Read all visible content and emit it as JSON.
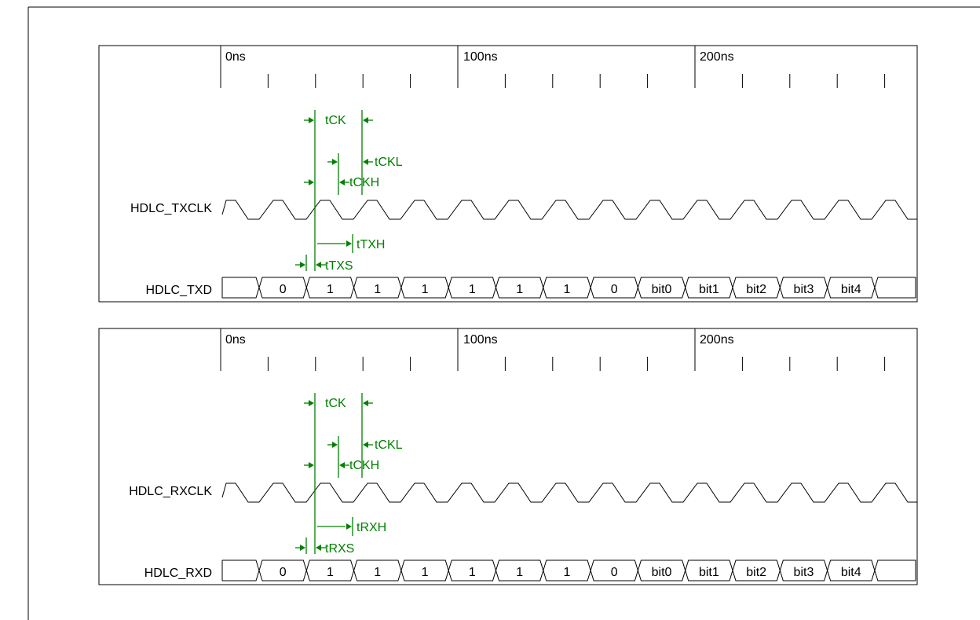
{
  "panels": [
    {
      "time_labels": [
        "0ns",
        "100ns",
        "200ns"
      ],
      "clock_signal": "HDLC_TXCLK",
      "data_signal": "HDLC_TXD",
      "data_segments": [
        "",
        "0",
        "1",
        "1",
        "1",
        "1",
        "1",
        "1",
        "0",
        "bit0",
        "bit1",
        "bit2",
        "bit3",
        "bit4",
        ""
      ],
      "annotations": {
        "period": "tCK",
        "low_time": "tCKL",
        "high_time": "tCKH",
        "hold": "tTXH",
        "setup": "tTXS"
      }
    },
    {
      "time_labels": [
        "0ns",
        "100ns",
        "200ns"
      ],
      "clock_signal": "HDLC_RXCLK",
      "data_signal": "HDLC_RXD",
      "data_segments": [
        "",
        "0",
        "1",
        "1",
        "1",
        "1",
        "1",
        "1",
        "0",
        "bit0",
        "bit1",
        "bit2",
        "bit3",
        "bit4",
        ""
      ],
      "annotations": {
        "period": "tCK",
        "low_time": "tCKL",
        "high_time": "tCKH",
        "hold": "tRXH",
        "setup": "tRXS"
      }
    }
  ],
  "colors": {
    "annotation": "#008000",
    "line": "#000000"
  }
}
